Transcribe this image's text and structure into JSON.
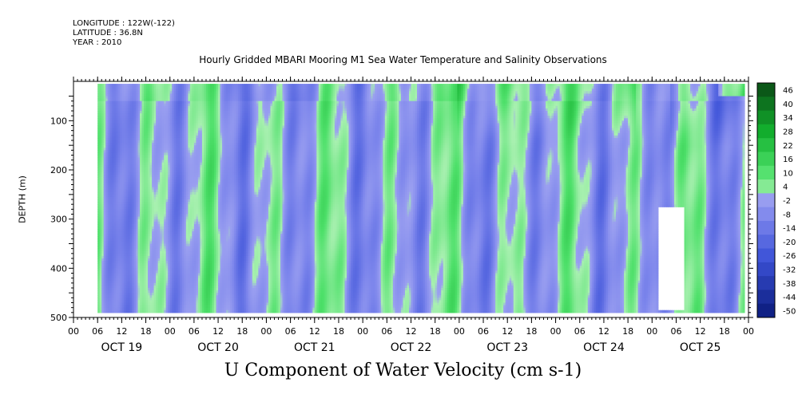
{
  "header": {
    "longitude": "LONGITUDE : 122W(-122)",
    "latitude": "LATITUDE : 36.8N",
    "year": "YEAR : 2010"
  },
  "chart_data": {
    "type": "heatmap",
    "title": "Hourly Gridded MBARI Mooring M1 Sea Water Temperature and Salinity Observations",
    "xlabel": "U Component of Water Velocity (cm s-1)",
    "ylabel": "DEPTH (m)",
    "y_axis": {
      "range": [
        20,
        500
      ],
      "inverted": true,
      "ticks": [
        100,
        200,
        300,
        400,
        500
      ]
    },
    "x_axis": {
      "days": [
        "OCT 19",
        "OCT 20",
        "OCT 21",
        "OCT 22",
        "OCT 23",
        "OCT 24",
        "OCT 25"
      ],
      "hour_ticks": [
        "00",
        "06",
        "12",
        "18"
      ],
      "range_hours_from_oct19_00": [
        0,
        168
      ]
    },
    "data_extent": {
      "x_hours": [
        6,
        167
      ],
      "depth_m": [
        25,
        490
      ]
    },
    "colorbar": {
      "labels": [
        46,
        40,
        34,
        28,
        22,
        16,
        10,
        4,
        -2,
        -8,
        -14,
        -20,
        -26,
        -32,
        -38,
        -44,
        -50
      ],
      "range": [
        -50,
        49
      ],
      "low_color": "#0a1a7a",
      "mid_low_color": "#9a9ff0",
      "mid_high_color": "#a8f0b0",
      "high_color": "#0a4a14"
    },
    "field_description": "alternating vertical bands of positive (green) and negative (blue) velocity; stronger positive values near surface on OCT 23–24; small missing-data patch near OCT 25 00–06 below ~270 m"
  }
}
